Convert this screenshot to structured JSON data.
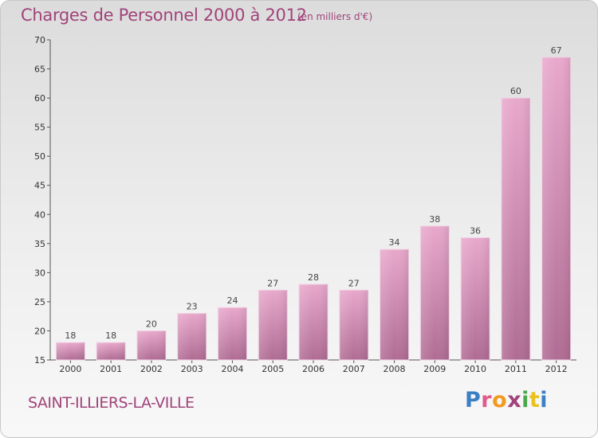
{
  "header": {
    "title": "Charges de Personnel 2000 à 2012",
    "unit_note": "(en milliers d'€)"
  },
  "footer": {
    "commune": "SAINT-ILLIERS-LA-VILLE",
    "logo_letters": [
      "P",
      "r",
      "o",
      "x",
      "i",
      "t",
      "i"
    ],
    "logo_colors": [
      "#3b7fc4",
      "#e05a8a",
      "#f29a1f",
      "#a0437a",
      "#4aa84a",
      "#e8c21e",
      "#3b7fc4"
    ]
  },
  "chart_data": {
    "type": "bar",
    "title": "Charges de Personnel 2000 à 2012",
    "unit": "(en milliers d'€)",
    "categories": [
      "2000",
      "2001",
      "2002",
      "2003",
      "2004",
      "2005",
      "2006",
      "2007",
      "2008",
      "2009",
      "2010",
      "2011",
      "2012"
    ],
    "values": [
      18,
      18,
      20,
      23,
      24,
      27,
      28,
      27,
      34,
      38,
      36,
      60,
      67
    ],
    "ylim": [
      15,
      70
    ],
    "yticks": [
      "15",
      "20",
      "25",
      "30",
      "35",
      "40",
      "45",
      "50",
      "55",
      "60",
      "65",
      "70"
    ],
    "grid": false,
    "bar_color_top": "#e8a8cc",
    "bar_color_bottom": "#b06c94"
  }
}
